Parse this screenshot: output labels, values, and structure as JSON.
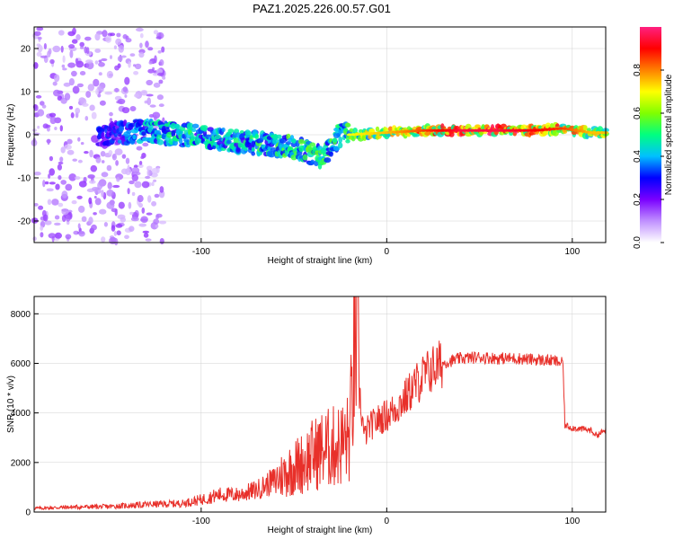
{
  "title": "PAZ1.2025.226.00.57.G01",
  "colors": {
    "snr_line": "#e8302a",
    "spectrogram_low": "#d9c9ff",
    "spectrogram_mid": "#5a10e0",
    "spectrogram_high": "#ff2020",
    "axis": "#000000",
    "grid": "#d0d0d0"
  },
  "chart_data": [
    {
      "type": "heatmap",
      "xlabel": "Height of straight line (km)",
      "ylabel": "Frequency (Hz)",
      "xlim": [
        -190,
        118
      ],
      "ylim": [
        -25,
        25
      ],
      "xticks": [
        -100,
        0,
        100
      ],
      "xtick_labels": [
        "-100",
        "0",
        "100"
      ],
      "yticks": [
        -20,
        -10,
        0,
        10,
        20
      ],
      "ytick_labels": [
        "-20",
        "-10",
        "0",
        "10",
        "20"
      ],
      "grid": true,
      "colorbar": {
        "label": "Normalized spectral amplitude",
        "range": [
          0,
          1
        ],
        "ticks": [
          0.0,
          0.2,
          0.4,
          0.6,
          0.8
        ],
        "tick_labels": [
          "0.0",
          "0.2",
          "0.4",
          "0.6",
          "0.8"
        ],
        "colormap": [
          "#ffffff",
          "#c090ff",
          "#7a00ff",
          "#0000ff",
          "#00c0ff",
          "#00ff80",
          "#80ff00",
          "#ffff00",
          "#ff8000",
          "#ff0000",
          "#ff2080"
        ]
      },
      "ridge": [
        {
          "x": -150,
          "freq": 0.0,
          "amp": 0.3
        },
        {
          "x": -130,
          "freq": 1.0,
          "amp": 0.45
        },
        {
          "x": -110,
          "freq": 0.0,
          "amp": 0.5
        },
        {
          "x": -90,
          "freq": -1.0,
          "amp": 0.45
        },
        {
          "x": -70,
          "freq": -2.0,
          "amp": 0.5
        },
        {
          "x": -50,
          "freq": -3.0,
          "amp": 0.55
        },
        {
          "x": -35,
          "freq": -5.0,
          "amp": 0.55
        },
        {
          "x": -25,
          "freq": 0.0,
          "amp": 0.5
        },
        {
          "x": -20,
          "freq": 0.0,
          "amp": 0.7
        },
        {
          "x": 0,
          "freq": 0.5,
          "amp": 0.75
        },
        {
          "x": 20,
          "freq": 1.0,
          "amp": 0.85
        },
        {
          "x": 40,
          "freq": 1.0,
          "amp": 0.95
        },
        {
          "x": 60,
          "freq": 1.0,
          "amp": 0.95
        },
        {
          "x": 80,
          "freq": 1.0,
          "amp": 0.9
        },
        {
          "x": 95,
          "freq": 1.5,
          "amp": 0.85
        },
        {
          "x": 110,
          "freq": 0.5,
          "amp": 0.75
        }
      ]
    },
    {
      "type": "line",
      "xlabel": "Height of straight line (km)",
      "ylabel": "SNR (10 * v/v)",
      "xlim": [
        -190,
        118
      ],
      "ylim": [
        0,
        8700
      ],
      "xticks": [
        -100,
        0,
        100
      ],
      "xtick_labels": [
        "-100",
        "0",
        "100"
      ],
      "yticks": [
        0,
        2000,
        4000,
        6000,
        8000
      ],
      "ytick_labels": [
        "0",
        "2000",
        "4000",
        "6000",
        "8000"
      ],
      "grid": true,
      "series": [
        {
          "x": [
            -190,
            -170,
            -150,
            -130,
            -110,
            -100,
            -90,
            -80,
            -70,
            -60,
            -50,
            -45,
            -40,
            -35,
            -30,
            -25,
            -20,
            -17,
            -16,
            -15,
            -12,
            -10,
            -5,
            0,
            5,
            10,
            15,
            20,
            25,
            30,
            40,
            50,
            60,
            70,
            80,
            90,
            95,
            96,
            100,
            110,
            113,
            118
          ],
          "y": [
            150,
            200,
            220,
            300,
            350,
            500,
            700,
            700,
            900,
            1300,
            1800,
            2000,
            2300,
            2500,
            2600,
            2700,
            3000,
            6800,
            8600,
            5000,
            3000,
            3400,
            3700,
            3900,
            4200,
            4600,
            5100,
            5500,
            5800,
            6000,
            6200,
            6250,
            6200,
            6200,
            6150,
            6100,
            6000,
            3500,
            3400,
            3300,
            3100,
            3300
          ]
        }
      ]
    }
  ]
}
